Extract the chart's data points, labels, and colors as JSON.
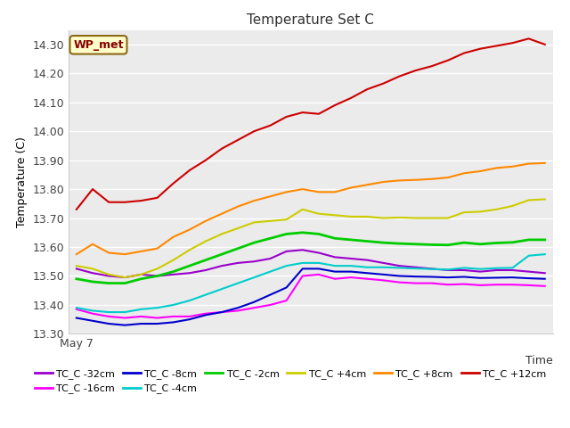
{
  "title": "Temperature Set C",
  "xlabel": "Time",
  "ylabel": "Temperature (C)",
  "ylim": [
    13.3,
    14.35
  ],
  "yticks": [
    13.3,
    13.4,
    13.5,
    13.6,
    13.7,
    13.8,
    13.9,
    14.0,
    14.1,
    14.2,
    14.3
  ],
  "annotation_text": "WP_met",
  "annotation_color": "#8B0000",
  "annotation_bg": "#FFFFCC",
  "annotation_border": "#8B6914",
  "fig_bg_color": "#FFFFFF",
  "plot_bg": "#EBEBEB",
  "grid_color": "#FFFFFF",
  "series": [
    {
      "label": "TC_C -32cm",
      "color": "#9900CC",
      "linewidth": 1.5,
      "y": [
        13.525,
        13.51,
        13.5,
        13.495,
        13.505,
        13.5,
        13.505,
        13.51,
        13.52,
        13.535,
        13.545,
        13.55,
        13.56,
        13.585,
        13.59,
        13.58,
        13.565,
        13.56,
        13.555,
        13.545,
        13.535,
        13.53,
        13.525,
        13.52,
        13.52,
        13.515,
        13.52,
        13.52,
        13.515,
        13.51
      ]
    },
    {
      "label": "TC_C -16cm",
      "color": "#FF00FF",
      "linewidth": 1.5,
      "y": [
        13.385,
        13.37,
        13.36,
        13.355,
        13.36,
        13.355,
        13.36,
        13.36,
        13.37,
        13.375,
        13.38,
        13.39,
        13.4,
        13.415,
        13.5,
        13.505,
        13.49,
        13.495,
        13.49,
        13.485,
        13.478,
        13.475,
        13.475,
        13.47,
        13.472,
        13.468,
        13.47,
        13.47,
        13.468,
        13.465
      ]
    },
    {
      "label": "TC_C -8cm",
      "color": "#0000CC",
      "linewidth": 1.5,
      "y": [
        13.355,
        13.345,
        13.335,
        13.33,
        13.335,
        13.335,
        13.34,
        13.35,
        13.365,
        13.375,
        13.39,
        13.41,
        13.435,
        13.46,
        13.525,
        13.525,
        13.515,
        13.515,
        13.51,
        13.505,
        13.5,
        13.498,
        13.497,
        13.495,
        13.497,
        13.493,
        13.494,
        13.495,
        13.492,
        13.49
      ]
    },
    {
      "label": "TC_C -4cm",
      "color": "#00CCCC",
      "linewidth": 1.5,
      "y": [
        13.39,
        13.38,
        13.375,
        13.375,
        13.385,
        13.39,
        13.4,
        13.415,
        13.435,
        13.455,
        13.475,
        13.495,
        13.515,
        13.535,
        13.545,
        13.545,
        13.535,
        13.535,
        13.53,
        13.53,
        13.528,
        13.526,
        13.524,
        13.522,
        13.528,
        13.524,
        13.527,
        13.528,
        13.57,
        13.575
      ]
    },
    {
      "label": "TC_C -2cm",
      "color": "#00CC00",
      "linewidth": 2.0,
      "y": [
        13.49,
        13.48,
        13.475,
        13.475,
        13.49,
        13.5,
        13.515,
        13.535,
        13.555,
        13.575,
        13.595,
        13.615,
        13.63,
        13.645,
        13.65,
        13.645,
        13.63,
        13.625,
        13.62,
        13.615,
        13.612,
        13.61,
        13.608,
        13.607,
        13.615,
        13.61,
        13.614,
        13.616,
        13.625,
        13.625
      ]
    },
    {
      "label": "TC_C +4cm",
      "color": "#CCCC00",
      "linewidth": 1.5,
      "y": [
        13.535,
        13.525,
        13.505,
        13.495,
        13.505,
        13.525,
        13.555,
        13.59,
        13.62,
        13.645,
        13.665,
        13.685,
        13.69,
        13.695,
        13.73,
        13.715,
        13.71,
        13.705,
        13.705,
        13.7,
        13.702,
        13.7,
        13.7,
        13.7,
        13.72,
        13.722,
        13.73,
        13.742,
        13.762,
        13.765
      ]
    },
    {
      "label": "TC_C +8cm",
      "color": "#FF8800",
      "linewidth": 1.5,
      "y": [
        13.575,
        13.61,
        13.58,
        13.575,
        13.585,
        13.595,
        13.635,
        13.66,
        13.69,
        13.715,
        13.74,
        13.76,
        13.775,
        13.79,
        13.8,
        13.79,
        13.79,
        13.805,
        13.815,
        13.825,
        13.83,
        13.832,
        13.835,
        13.84,
        13.855,
        13.862,
        13.873,
        13.878,
        13.888,
        13.89
      ]
    },
    {
      "label": "TC_C +12cm",
      "color": "#CC0000",
      "linewidth": 1.5,
      "y": [
        13.73,
        13.8,
        13.755,
        13.755,
        13.76,
        13.77,
        13.82,
        13.865,
        13.9,
        13.94,
        13.97,
        14.0,
        14.02,
        14.05,
        14.065,
        14.06,
        14.09,
        14.115,
        14.145,
        14.165,
        14.19,
        14.21,
        14.225,
        14.245,
        14.27,
        14.285,
        14.295,
        14.305,
        14.32,
        14.3
      ]
    }
  ],
  "n_points": 30,
  "x_start_label": "May 7",
  "time_label": "Time"
}
